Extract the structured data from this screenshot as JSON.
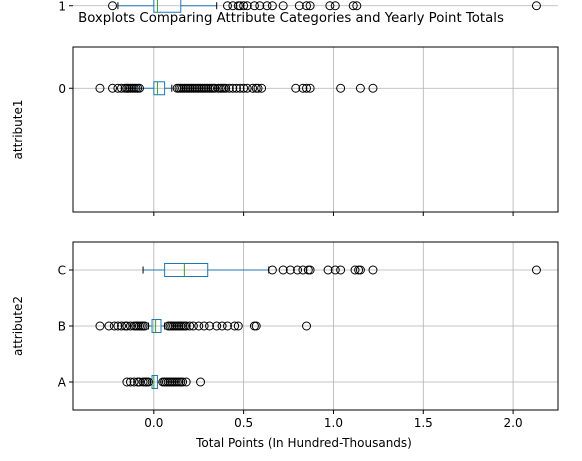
{
  "chart_data": [
    {
      "type": "boxplot",
      "title": "Boxplots Comparing Attribute Categories and Yearly Point Totals",
      "ylabel": "attribute1",
      "xlabel": "",
      "xlim": [
        -0.45,
        2.25
      ],
      "xticks": [
        0.0,
        0.5,
        1.0,
        1.5,
        2.0
      ],
      "xtick_labels": [
        "0.0",
        "0.5",
        "1.0",
        "1.5",
        "2.0"
      ],
      "show_xtick_labels": false,
      "grid": true,
      "categories": [
        "0",
        "1"
      ],
      "boxes": [
        {
          "category": "0",
          "whisker_low": -0.15,
          "q1": 0.0,
          "median": 0.02,
          "q3": 0.06,
          "whisker_high": 0.1,
          "outliers": [
            -0.3,
            -0.23,
            -0.2,
            -0.18,
            -0.16,
            -0.15,
            -0.14,
            -0.13,
            -0.12,
            -0.11,
            -0.1,
            -0.09,
            -0.08,
            0.13,
            0.14,
            0.15,
            0.16,
            0.17,
            0.18,
            0.19,
            0.2,
            0.21,
            0.22,
            0.23,
            0.24,
            0.25,
            0.26,
            0.27,
            0.28,
            0.29,
            0.3,
            0.31,
            0.32,
            0.33,
            0.34,
            0.36,
            0.37,
            0.38,
            0.39,
            0.4,
            0.42,
            0.44,
            0.46,
            0.48,
            0.5,
            0.52,
            0.55,
            0.57,
            0.58,
            0.6,
            0.79,
            0.83,
            0.85,
            0.87,
            1.04,
            1.15,
            1.22
          ]
        },
        {
          "category": "1",
          "whisker_low": -0.2,
          "q1": 0.0,
          "median": 0.02,
          "q3": 0.15,
          "whisker_high": 0.35,
          "outliers": [
            -0.23,
            0.41,
            0.44,
            0.47,
            0.48,
            0.5,
            0.52,
            0.56,
            0.59,
            0.63,
            0.66,
            0.72,
            0.81,
            0.85,
            0.87,
            0.98,
            1.01,
            1.11,
            1.13,
            2.13
          ]
        }
      ]
    },
    {
      "type": "boxplot",
      "title": "",
      "ylabel": "attribute2",
      "xlabel": "Total Points (In Hundred-Thousands)",
      "xlim": [
        -0.45,
        2.25
      ],
      "xticks": [
        0.0,
        0.5,
        1.0,
        1.5,
        2.0
      ],
      "xtick_labels": [
        "0.0",
        "0.5",
        "1.0",
        "1.5",
        "2.0"
      ],
      "show_xtick_labels": true,
      "grid": true,
      "categories": [
        "A",
        "B",
        "C"
      ],
      "boxes": [
        {
          "category": "A",
          "whisker_low": -0.02,
          "q1": -0.01,
          "median": 0.0,
          "q3": 0.02,
          "whisker_high": 0.04,
          "outliers": [
            -0.15,
            -0.13,
            -0.11,
            -0.09,
            -0.08,
            -0.06,
            -0.05,
            -0.04,
            -0.03,
            0.05,
            0.06,
            0.07,
            0.08,
            0.09,
            0.1,
            0.11,
            0.12,
            0.13,
            0.14,
            0.15,
            0.16,
            0.18,
            0.26
          ]
        },
        {
          "category": "B",
          "whisker_low": -0.03,
          "q1": -0.01,
          "median": 0.01,
          "q3": 0.04,
          "whisker_high": 0.06,
          "outliers": [
            -0.3,
            -0.25,
            -0.22,
            -0.2,
            -0.18,
            -0.16,
            -0.15,
            -0.13,
            -0.11,
            -0.1,
            -0.09,
            -0.08,
            -0.07,
            -0.06,
            -0.05,
            0.08,
            0.09,
            0.1,
            0.11,
            0.12,
            0.13,
            0.14,
            0.15,
            0.16,
            0.17,
            0.18,
            0.2,
            0.22,
            0.25,
            0.28,
            0.31,
            0.35,
            0.38,
            0.41,
            0.45,
            0.47,
            0.56,
            0.57,
            0.85
          ]
        },
        {
          "category": "C",
          "whisker_low": -0.06,
          "q1": 0.06,
          "median": 0.17,
          "q3": 0.3,
          "whisker_high": 0.64,
          "outliers": [
            0.66,
            0.72,
            0.76,
            0.8,
            0.83,
            0.86,
            0.87,
            0.97,
            1.01,
            1.04,
            1.12,
            1.14,
            1.15,
            1.22,
            2.13
          ]
        }
      ]
    }
  ]
}
